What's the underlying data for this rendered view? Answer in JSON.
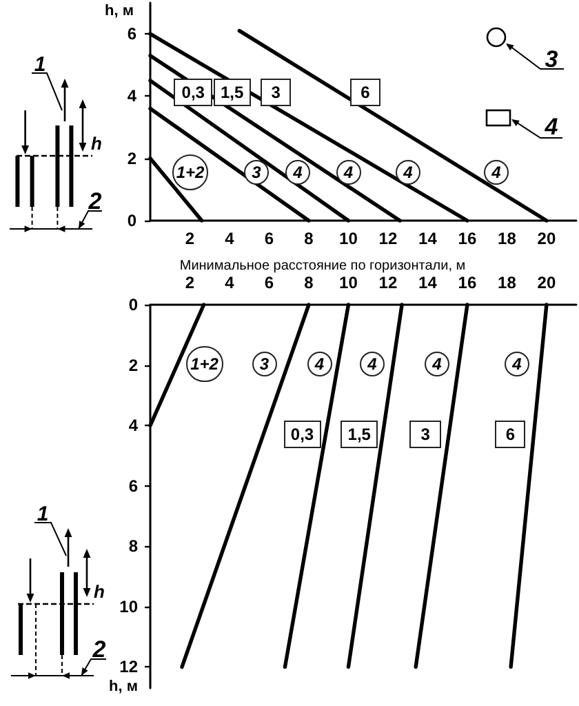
{
  "chart_data": [
    {
      "type": "line",
      "xlabel": "Минимальное расстояние по горизонтали, м",
      "ylabel": "h, м",
      "xlim": [
        0,
        21.5
      ],
      "ylim": [
        0,
        7
      ],
      "xticks": [
        2,
        4,
        6,
        8,
        10,
        12,
        14,
        16,
        18,
        20
      ],
      "yticks": [
        0,
        2,
        4,
        6
      ],
      "grid": false,
      "legend": false,
      "marker": "none",
      "line_style": "solid",
      "series": [
        {
          "color": "#000000",
          "x": [
            0,
            2.6
          ],
          "values": [
            2,
            0
          ]
        },
        {
          "color": "#000000",
          "x": [
            0,
            8
          ],
          "values": [
            3.6,
            0
          ]
        },
        {
          "name": "0,3",
          "color": "#000000",
          "x": [
            0,
            10
          ],
          "values": [
            4.5,
            0
          ]
        },
        {
          "name": "1,5",
          "color": "#000000",
          "x": [
            0,
            12.6
          ],
          "values": [
            5.3,
            0
          ]
        },
        {
          "name": "3",
          "color": "#000000",
          "x": [
            0,
            16
          ],
          "values": [
            6,
            0
          ]
        },
        {
          "name": "6",
          "color": "#000000",
          "x": [
            4.5,
            20
          ],
          "values": [
            6.1,
            0
          ]
        }
      ],
      "annotations": [
        "1+2",
        "3",
        "4",
        "4",
        "4",
        "4",
        "3",
        "4",
        "1",
        "2",
        "h"
      ]
    },
    {
      "type": "line",
      "ylabel": "h, м",
      "xlim": [
        0,
        21.5
      ],
      "ylim": [
        12.7,
        0
      ],
      "xticks": [
        2,
        4,
        6,
        8,
        10,
        12,
        14,
        16,
        18,
        20
      ],
      "yticks": [
        0,
        2,
        4,
        6,
        8,
        10,
        12
      ],
      "grid": false,
      "legend": false,
      "marker": "none",
      "line_style": "solid",
      "series": [
        {
          "color": "#000000",
          "x": [
            2.7,
            0
          ],
          "values": [
            0,
            4
          ]
        },
        {
          "color": "#000000",
          "x": [
            8,
            1.6
          ],
          "values": [
            0,
            12
          ]
        },
        {
          "name": "0,3",
          "color": "#000000",
          "x": [
            10,
            6.8
          ],
          "values": [
            0,
            12
          ]
        },
        {
          "name": "1,5",
          "color": "#000000",
          "x": [
            12.7,
            10
          ],
          "values": [
            0,
            12
          ]
        },
        {
          "name": "3",
          "color": "#000000",
          "x": [
            16,
            13.4
          ],
          "values": [
            0,
            12
          ]
        },
        {
          "name": "6",
          "color": "#000000",
          "x": [
            20,
            18.2
          ],
          "values": [
            0,
            12
          ]
        }
      ],
      "annotations": [
        "1+2",
        "3",
        "4",
        "4",
        "4",
        "4",
        "1",
        "2",
        "h"
      ]
    }
  ]
}
